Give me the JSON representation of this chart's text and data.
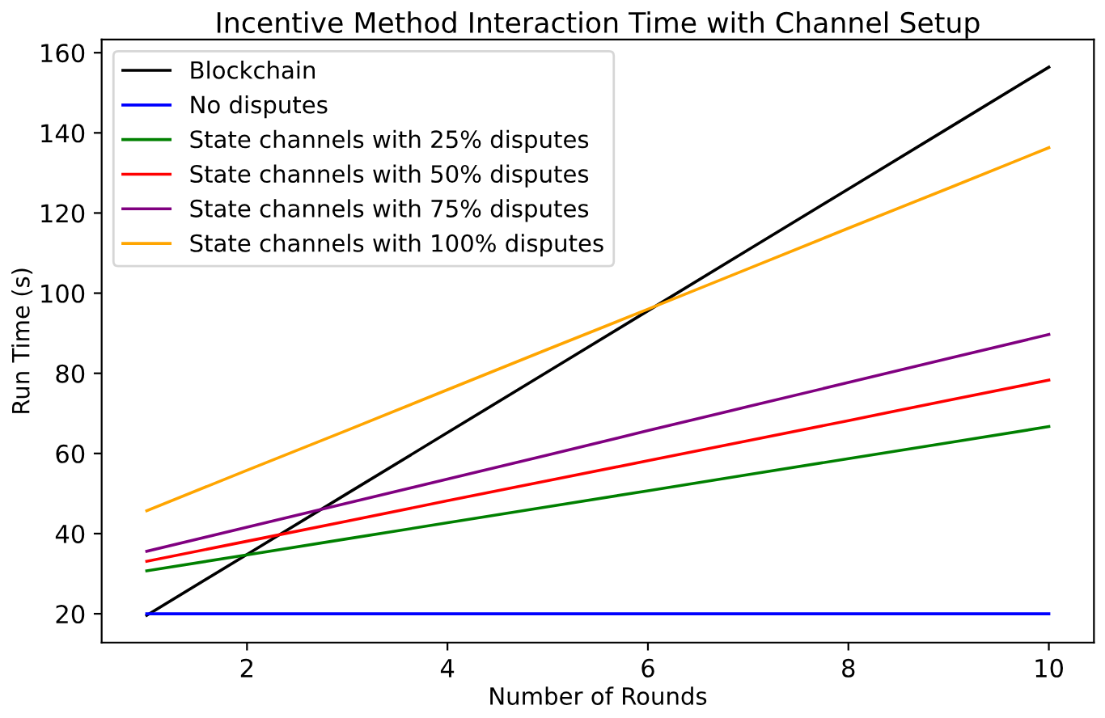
{
  "chart_data": {
    "type": "line",
    "title": "Incentive Method Interaction Time with Channel Setup",
    "xlabel": "Number of Rounds",
    "ylabel": "Run Time (s)",
    "x": [
      1,
      2,
      3,
      4,
      5,
      6,
      7,
      8,
      9,
      10
    ],
    "series": [
      {
        "name": "Blockchain",
        "color": "#000000",
        "values": [
          19.6,
          34.8,
          50,
          65.2,
          80.4,
          95.6,
          110.8,
          126,
          141.2,
          156.4
        ]
      },
      {
        "name": "No disputes",
        "color": "#0000ff",
        "values": [
          20,
          20,
          20,
          20,
          20,
          20,
          20,
          20,
          20,
          20
        ]
      },
      {
        "name": "State channels with 25% disputes",
        "color": "#008000",
        "values": [
          30.7,
          34.7,
          38.7,
          42.7,
          46.7,
          50.7,
          54.7,
          58.7,
          62.7,
          66.7
        ]
      },
      {
        "name": "State channels with 50% disputes",
        "color": "#ff0000",
        "values": [
          33.1,
          38.1,
          43.1,
          48.2,
          53.2,
          58.2,
          63.2,
          68.2,
          73.3,
          78.3
        ]
      },
      {
        "name": "State channels with 75% disputes",
        "color": "#800080",
        "values": [
          35.6,
          41.6,
          47.6,
          53.6,
          59.6,
          65.7,
          71.7,
          77.7,
          83.7,
          89.7
        ]
      },
      {
        "name": "State channels with 100% disputes",
        "color": "#ffa500",
        "values": [
          45.7,
          55.8,
          65.8,
          75.9,
          86.0,
          96.0,
          106.1,
          116.2,
          126.2,
          136.3
        ]
      }
    ],
    "xlim": [
      0.55,
      10.45
    ],
    "ylim": [
      12.8,
      163.3
    ],
    "xticks": [
      2,
      4,
      6,
      8,
      10
    ],
    "yticks": [
      20,
      40,
      60,
      80,
      100,
      120,
      140,
      160
    ],
    "grid": false,
    "legend": "top left",
    "marker": "none",
    "line_style": "solid"
  }
}
